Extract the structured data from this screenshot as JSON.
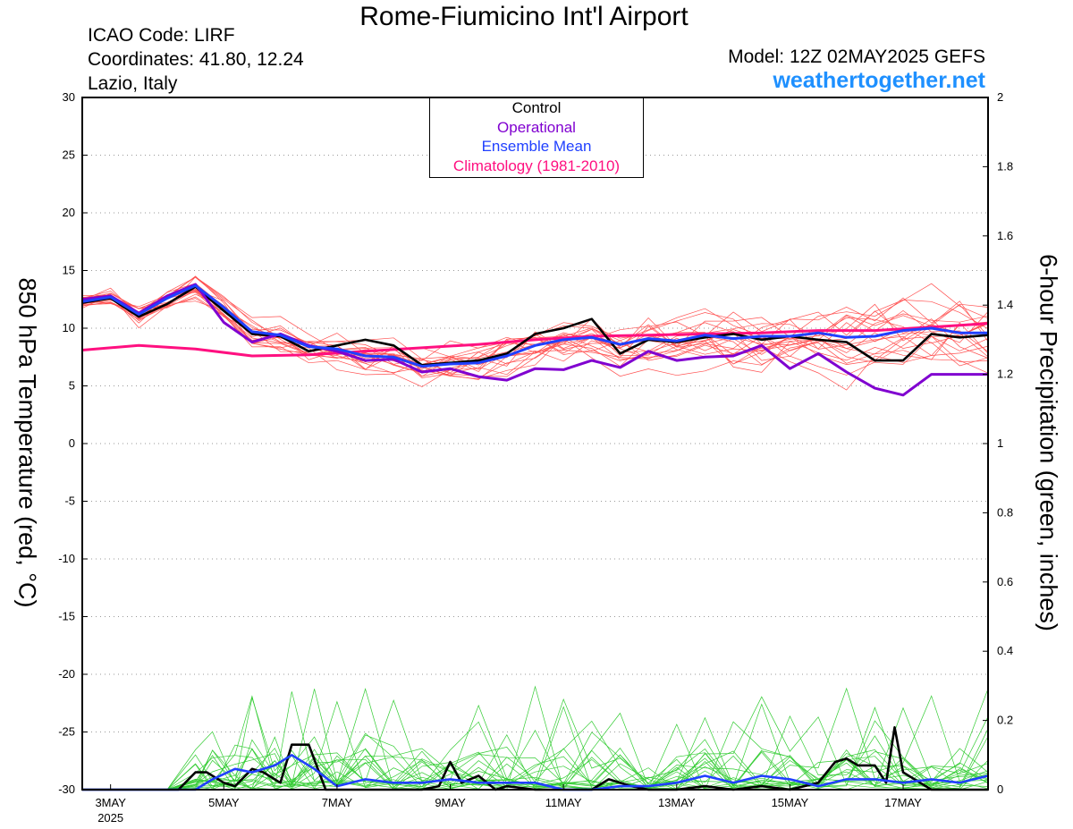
{
  "header": {
    "title": "Rome-Fiumicino Int'l Airport",
    "icao": "ICAO Code: LIRF",
    "coordinates": "Coordinates: 41.80, 12.24",
    "region": "Lazio, Italy",
    "model": "Model: 12Z 02MAY2025 GEFS",
    "site": "weathertogether.net"
  },
  "legend": {
    "control": "Control",
    "operational": "Operational",
    "ensemble_mean": "Ensemble Mean",
    "climatology": "Climatology (1981-2010)"
  },
  "colors": {
    "control": "#000000",
    "operational": "#8000d0",
    "ensemble_mean": "#2040ff",
    "climatology": "#ff1080",
    "members_temp": "#ff5050",
    "members_precip": "#33cc33",
    "site": "#1e90ff"
  },
  "chart_data": {
    "type": "line",
    "x_unit": "day of May 2025",
    "xlim": [
      2.5,
      18.5
    ],
    "x_ticks": [
      {
        "x": 3,
        "label": "3MAY",
        "sub": "2025"
      },
      {
        "x": 5,
        "label": "5MAY",
        "sub": ""
      },
      {
        "x": 7,
        "label": "7MAY",
        "sub": ""
      },
      {
        "x": 9,
        "label": "9MAY",
        "sub": ""
      },
      {
        "x": 11,
        "label": "11MAY",
        "sub": ""
      },
      {
        "x": 13,
        "label": "13MAY",
        "sub": ""
      },
      {
        "x": 15,
        "label": "15MAY",
        "sub": ""
      },
      {
        "x": 17,
        "label": "17MAY",
        "sub": ""
      }
    ],
    "y_left": {
      "label": "850 hPa Temperature (red, °C)",
      "lim": [
        -30,
        30
      ],
      "ticks": [
        30,
        25,
        20,
        15,
        10,
        5,
        0,
        -5,
        -10,
        -15,
        -20,
        -25,
        -30
      ]
    },
    "y_right": {
      "label": "6-hour Precipitation (green, inches)",
      "lim": [
        0,
        2
      ],
      "ticks": [
        "2",
        "1.8",
        "1.6",
        "1.4",
        "1.2",
        "1",
        "0.8",
        "0.6",
        "0.4",
        "0.2",
        "0"
      ]
    },
    "grid": "dotted horizontal",
    "legend_position": "top-center",
    "series": [
      {
        "name": "Control",
        "axis": "left",
        "x": [
          2.5,
          3.0,
          3.5,
          4.0,
          4.5,
          5.0,
          5.5,
          6.0,
          6.5,
          7.0,
          7.5,
          8.0,
          8.5,
          9.0,
          9.5,
          10.0,
          10.5,
          11.0,
          11.5,
          12.0,
          12.5,
          13.0,
          13.5,
          14.0,
          14.5,
          15.0,
          15.5,
          16.0,
          16.5,
          17.0,
          17.5,
          18.0,
          18.5
        ],
        "y": [
          12.2,
          12.6,
          11.0,
          12.1,
          13.6,
          11.5,
          9.5,
          9.3,
          8.0,
          8.5,
          9.0,
          8.5,
          6.8,
          7.0,
          7.2,
          7.8,
          9.5,
          10.0,
          10.8,
          7.8,
          9.0,
          8.8,
          9.2,
          9.5,
          9.0,
          9.3,
          9.0,
          8.8,
          7.2,
          7.2,
          9.5,
          9.2,
          9.4
        ]
      },
      {
        "name": "Operational",
        "axis": "left",
        "x": [
          2.5,
          3.0,
          3.5,
          4.0,
          4.5,
          5.0,
          5.5,
          6.0,
          6.5,
          7.0,
          7.5,
          8.0,
          8.5,
          9.0,
          9.5,
          10.0,
          10.5,
          11.0,
          11.5,
          12.0,
          12.5,
          13.0,
          13.5,
          14.0,
          14.5,
          15.0,
          15.5,
          16.0,
          16.5,
          17.0,
          17.5,
          18.0,
          18.5
        ],
        "y": [
          12.5,
          12.8,
          11.3,
          12.8,
          13.8,
          10.5,
          8.8,
          9.5,
          8.5,
          8.0,
          7.2,
          7.3,
          6.2,
          6.5,
          5.8,
          5.5,
          6.5,
          6.4,
          7.2,
          6.6,
          8.0,
          7.2,
          7.5,
          7.6,
          8.5,
          6.5,
          7.8,
          6.2,
          4.8,
          4.2,
          6.0,
          6.0,
          6.0
        ]
      },
      {
        "name": "Ensemble Mean",
        "axis": "left",
        "x": [
          2.5,
          3.0,
          3.5,
          4.0,
          4.5,
          5.0,
          5.5,
          6.0,
          6.5,
          7.0,
          7.5,
          8.0,
          8.5,
          9.0,
          9.5,
          10.0,
          10.5,
          11.0,
          11.5,
          12.0,
          12.5,
          13.0,
          13.5,
          14.0,
          14.5,
          15.0,
          15.5,
          16.0,
          16.5,
          17.0,
          17.5,
          18.0,
          18.5
        ],
        "y": [
          12.3,
          12.7,
          11.2,
          12.6,
          13.7,
          11.8,
          9.7,
          9.4,
          8.4,
          8.2,
          7.6,
          7.5,
          6.7,
          6.9,
          7.0,
          7.6,
          8.5,
          9.0,
          9.2,
          8.6,
          9.1,
          8.9,
          9.4,
          9.1,
          9.3,
          9.3,
          9.6,
          9.2,
          9.3,
          9.8,
          10.0,
          9.6,
          9.6
        ]
      },
      {
        "name": "Climatology (1981-2010)",
        "axis": "left",
        "x": [
          2.5,
          3.5,
          4.5,
          5.5,
          6.5,
          7.5,
          8.5,
          9.5,
          10.5,
          11.5,
          12.5,
          13.5,
          14.5,
          15.5,
          16.5,
          17.5,
          18.5
        ],
        "y": [
          8.1,
          8.5,
          8.2,
          7.6,
          7.7,
          8.0,
          8.3,
          8.6,
          9.0,
          9.3,
          9.4,
          9.5,
          9.6,
          9.8,
          9.8,
          10.1,
          10.4
        ]
      },
      {
        "name": "Control (precip)",
        "axis": "right",
        "x": [
          2.5,
          3.5,
          4.0,
          4.2,
          4.5,
          4.7,
          5.0,
          5.2,
          5.5,
          5.7,
          6.0,
          6.2,
          6.5,
          6.8,
          7.0,
          7.5,
          8.0,
          8.5,
          8.8,
          9.0,
          9.2,
          9.5,
          9.8,
          10.0,
          10.5,
          11.0,
          11.5,
          11.8,
          12.0,
          12.2,
          12.5,
          13.0,
          13.5,
          14.0,
          14.5,
          15.0,
          15.5,
          15.8,
          16.0,
          16.2,
          16.5,
          16.7,
          16.85,
          17.0,
          17.5,
          18.0,
          18.5
        ],
        "y": [
          0,
          0,
          0,
          0,
          0.05,
          0.05,
          0.02,
          0.01,
          0.06,
          0.05,
          0.02,
          0.13,
          0.13,
          0,
          0,
          0,
          0,
          0,
          0.01,
          0.08,
          0.02,
          0.04,
          0,
          0.01,
          0,
          0,
          0,
          0.03,
          0.02,
          0.01,
          0,
          0,
          0.01,
          0,
          0.01,
          0,
          0.02,
          0.08,
          0.09,
          0.07,
          0.07,
          0.02,
          0.18,
          0.05,
          0,
          0,
          0
        ]
      },
      {
        "name": "Ensemble Mean (precip)",
        "axis": "right",
        "x": [
          2.5,
          3.5,
          4.0,
          4.5,
          4.8,
          5.2,
          5.5,
          5.9,
          6.2,
          6.6,
          7.0,
          7.5,
          8.0,
          8.5,
          9.0,
          9.5,
          10.0,
          10.5,
          11.0,
          11.5,
          12.0,
          12.5,
          13.0,
          13.5,
          14.0,
          14.5,
          15.0,
          15.5,
          16.0,
          16.5,
          17.0,
          17.5,
          18.0,
          18.5
        ],
        "y": [
          0,
          0,
          0,
          0,
          0.03,
          0.06,
          0.05,
          0.07,
          0.1,
          0.06,
          0.01,
          0.03,
          0.02,
          0.02,
          0.03,
          0.02,
          0.02,
          0.02,
          0,
          0,
          0.01,
          0.01,
          0.02,
          0.04,
          0.02,
          0.04,
          0.03,
          0.01,
          0.03,
          0.03,
          0.02,
          0.03,
          0.02,
          0.04
        ]
      }
    ]
  }
}
